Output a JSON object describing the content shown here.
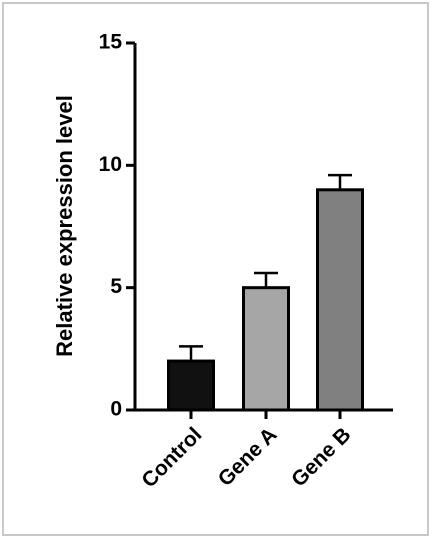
{
  "chart_data": {
    "type": "bar",
    "y_label": "Relative expression level",
    "categories": [
      "Control",
      "Gene A",
      "Gene B"
    ],
    "values": [
      2,
      5,
      9
    ],
    "errors": [
      0.6,
      0.6,
      0.6
    ],
    "colors": [
      "#111111",
      "#a6a6a6",
      "#808080"
    ],
    "ylim": [
      0,
      15
    ],
    "yticks": [
      0,
      5,
      10,
      15
    ],
    "grid": false
  }
}
